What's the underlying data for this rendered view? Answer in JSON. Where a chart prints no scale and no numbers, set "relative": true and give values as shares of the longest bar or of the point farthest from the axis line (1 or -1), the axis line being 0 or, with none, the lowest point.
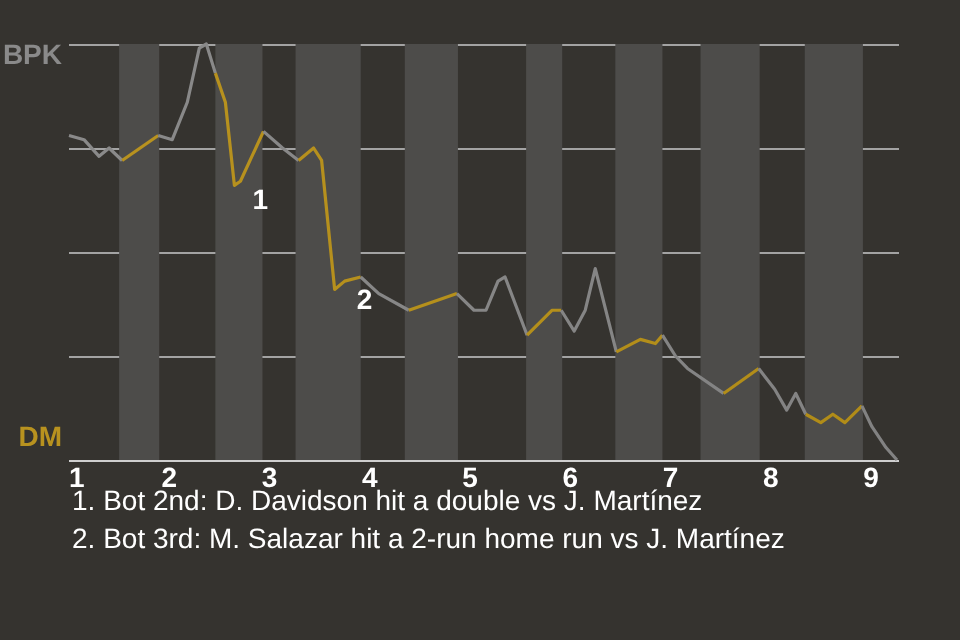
{
  "chart_data": {
    "type": "line",
    "relative": true,
    "grid": "y",
    "marker": "none",
    "line_style": "solid",
    "xlim": [
      1,
      9.28
    ],
    "xticks": [
      1,
      2,
      3,
      4,
      5,
      6,
      7,
      8,
      9
    ],
    "series": [
      {
        "color": "#8a8a8a",
        "x": [
          1.01,
          1.16,
          1.31,
          1.41,
          1.54
        ],
        "values": [
          0.78,
          0.77,
          0.73,
          0.75,
          0.72
        ]
      },
      {
        "color": "#b8921f",
        "x": [
          1.54,
          1.9
        ],
        "values": [
          0.72,
          0.78
        ]
      },
      {
        "color": "#898989",
        "x": [
          1.9,
          2.04,
          2.19,
          2.31,
          2.38,
          2.47
        ],
        "values": [
          0.78,
          0.77,
          0.86,
          0.99,
          1.0,
          0.93
        ]
      },
      {
        "color": "#b7911e",
        "x": [
          2.47,
          2.57,
          2.66,
          2.72,
          2.95
        ],
        "values": [
          0.93,
          0.86,
          0.66,
          0.67,
          0.79
        ]
      },
      {
        "color": "#888888",
        "x": [
          2.95,
          3.14,
          3.3
        ],
        "values": [
          0.79,
          0.75,
          0.72
        ]
      },
      {
        "color": "#b6901d",
        "x": [
          3.3,
          3.45,
          3.53,
          3.66,
          3.76,
          3.92
        ],
        "values": [
          0.72,
          0.75,
          0.72,
          0.41,
          0.43,
          0.44
        ]
      },
      {
        "color": "#878787",
        "x": [
          3.92,
          4.1,
          4.4
        ],
        "values": [
          0.44,
          0.4,
          0.36
        ]
      },
      {
        "color": "#b5901c",
        "x": [
          4.4,
          4.88
        ],
        "values": [
          0.36,
          0.4
        ]
      },
      {
        "color": "#868686",
        "x": [
          4.88,
          5.05,
          5.17,
          5.29,
          5.36,
          5.58
        ],
        "values": [
          0.4,
          0.36,
          0.36,
          0.43,
          0.44,
          0.3
        ]
      },
      {
        "color": "#b48f1b",
        "x": [
          5.58,
          5.83,
          5.92
        ],
        "values": [
          0.3,
          0.36,
          0.36
        ]
      },
      {
        "color": "#858585",
        "x": [
          5.92,
          6.05,
          6.16,
          6.26,
          6.47
        ],
        "values": [
          0.36,
          0.31,
          0.36,
          0.46,
          0.26
        ]
      },
      {
        "color": "#b38e1a",
        "x": [
          6.47,
          6.71,
          6.86,
          6.93
        ],
        "values": [
          0.26,
          0.29,
          0.28,
          0.3
        ]
      },
      {
        "color": "#848484",
        "x": [
          6.93,
          7.06,
          7.18,
          7.54
        ],
        "values": [
          0.3,
          0.25,
          0.22,
          0.16
        ]
      },
      {
        "color": "#b28d19",
        "x": [
          7.54,
          7.89
        ],
        "values": [
          0.16,
          0.22
        ]
      },
      {
        "color": "#838383",
        "x": [
          7.89,
          8.05,
          8.17,
          8.26,
          8.36
        ],
        "values": [
          0.22,
          0.17,
          0.12,
          0.16,
          0.11
        ]
      },
      {
        "color": "#b18c18",
        "x": [
          8.36,
          8.51,
          8.63,
          8.75,
          8.92
        ],
        "values": [
          0.11,
          0.09,
          0.11,
          0.09,
          0.13
        ]
      },
      {
        "color": "#828282",
        "x": [
          8.92,
          9.02,
          9.16,
          9.27
        ],
        "values": [
          0.13,
          0.08,
          0.03,
          0
        ]
      }
    ],
    "bands": [
      {
        "axis": "x",
        "from": 1.51,
        "to": 1.91,
        "color": "#4d4c4a"
      },
      {
        "axis": "x",
        "from": 2.47,
        "to": 2.94,
        "color": "#4d4c4a"
      },
      {
        "axis": "x",
        "from": 3.27,
        "to": 3.92,
        "color": "#4d4c4a"
      },
      {
        "axis": "x",
        "from": 4.36,
        "to": 4.89,
        "color": "#4d4c4a"
      },
      {
        "axis": "x",
        "from": 5.57,
        "to": 5.93,
        "color": "#4d4c4a"
      },
      {
        "axis": "x",
        "from": 6.46,
        "to": 6.93,
        "color": "#4d4c4a"
      },
      {
        "axis": "x",
        "from": 7.31,
        "to": 7.9,
        "color": "#4d4c4a"
      },
      {
        "axis": "x",
        "from": 8.35,
        "to": 8.93,
        "color": "#4d4c4a"
      }
    ],
    "annotations": [
      "BPK",
      "DM",
      "1. Bot 2nd: D. Davidson hit a double vs J. Martínez",
      "2. Bot 3rd: M. Salazar hit a 2-run home run vs J. Martínez",
      {
        "text": "1",
        "x": 2.72,
        "y": 0.67
      },
      {
        "text": "2",
        "x": 3.76,
        "y": 0.43
      }
    ]
  }
}
